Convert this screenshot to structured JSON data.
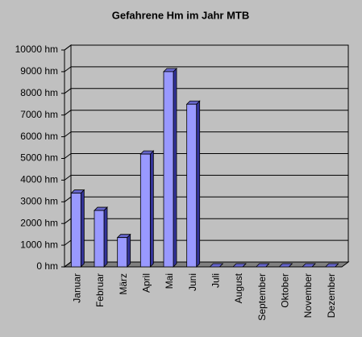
{
  "chart_data": {
    "type": "bar3d",
    "title": "Gefahrene Hm im Jahr MTB",
    "categories": [
      "Januar",
      "Februar",
      "März",
      "April",
      "Mai",
      "Juni",
      "Juli",
      "August",
      "September",
      "Oktober",
      "November",
      "Dezember"
    ],
    "values": [
      3400,
      2600,
      1350,
      5200,
      9000,
      7500,
      0,
      0,
      0,
      0,
      0,
      0
    ],
    "color": "#9999ff",
    "ylim": [
      0,
      10000
    ],
    "yticks": [
      {
        "value": 0,
        "label": "0 hm"
      },
      {
        "value": 1000,
        "label": "1000 hm"
      },
      {
        "value": 2000,
        "label": "2000 hm"
      },
      {
        "value": 3000,
        "label": "3000 hm"
      },
      {
        "value": 4000,
        "label": "4000 hm"
      },
      {
        "value": 5000,
        "label": "5000 hm"
      },
      {
        "value": 6000,
        "label": "6000 hm"
      },
      {
        "value": 7000,
        "label": "7000 hm"
      },
      {
        "value": 8000,
        "label": "8000 hm"
      },
      {
        "value": 9000,
        "label": "9000 hm"
      },
      {
        "value": 10000,
        "label": "10000 hm"
      }
    ],
    "grid": true
  }
}
